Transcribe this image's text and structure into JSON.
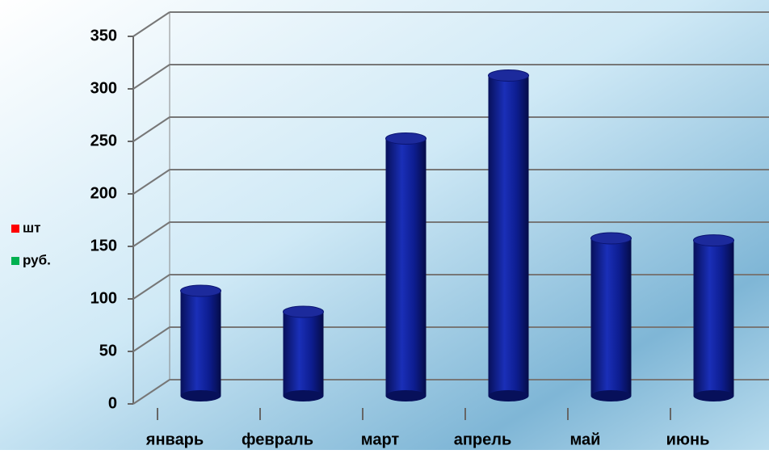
{
  "chart_data": {
    "type": "bar",
    "categories": [
      "январь",
      "февраль",
      "март",
      "апрель",
      "май",
      "июнь"
    ],
    "values": [
      100,
      80,
      245,
      305,
      150,
      148
    ],
    "color": "#0a1a8c",
    "ylim": [
      0,
      350
    ],
    "yticks": [
      0,
      50,
      100,
      150,
      200,
      250,
      300,
      350
    ],
    "grid": true,
    "legend": [
      {
        "name": "шт",
        "color": "#ff0000"
      },
      {
        "name": "руб.",
        "color": "#00b050"
      }
    ]
  }
}
